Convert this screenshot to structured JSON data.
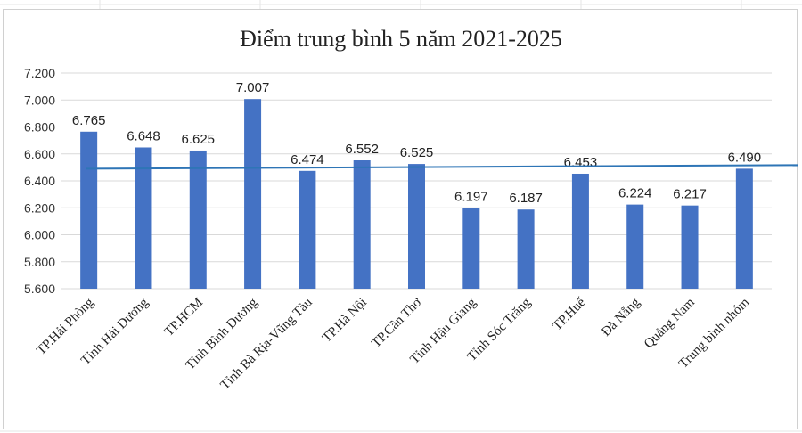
{
  "chart_data": {
    "type": "bar",
    "title": "Điểm trung bình 5 năm 2021-2025",
    "categories": [
      "TP.Hải Phòng",
      "Tỉnh Hải Dương",
      "TP.HCM",
      "Tỉnh Bình Dương",
      "Tỉnh Bà Rịa-Vũng Tàu",
      "TP.Hà Nội",
      "TP.Cần Thơ",
      "Tỉnh Hậu Giang",
      "Tỉnh Sóc Trăng",
      "TP.Huế",
      "Đà Nẵng",
      "Quảng Nam",
      "Trung bình nhóm"
    ],
    "values": [
      6.765,
      6.648,
      6.625,
      7.007,
      6.474,
      6.552,
      6.525,
      6.197,
      6.187,
      6.453,
      6.224,
      6.217,
      6.49
    ],
    "data_labels": [
      "6.765",
      "6.648",
      "6.625",
      "7.007",
      "6.474",
      "6.552",
      "6.525",
      "6.197",
      "6.187",
      "6.453",
      "6.224",
      "6.217",
      "6.490"
    ],
    "reference_line": 6.49,
    "ylim": [
      5.6,
      7.2
    ],
    "yticks": [
      "5.600",
      "5.800",
      "6.000",
      "6.200",
      "6.400",
      "6.600",
      "6.800",
      "7.000",
      "7.200"
    ],
    "ytick_values": [
      5.6,
      5.8,
      6.0,
      6.2,
      6.4,
      6.6,
      6.8,
      7.0,
      7.2
    ],
    "grid": true,
    "legend": "none",
    "xlabel": "",
    "ylabel": "",
    "colors": {
      "bar": "#4472c4",
      "reference_line": "#2e75b6",
      "grid": "#d9d9d9"
    }
  }
}
